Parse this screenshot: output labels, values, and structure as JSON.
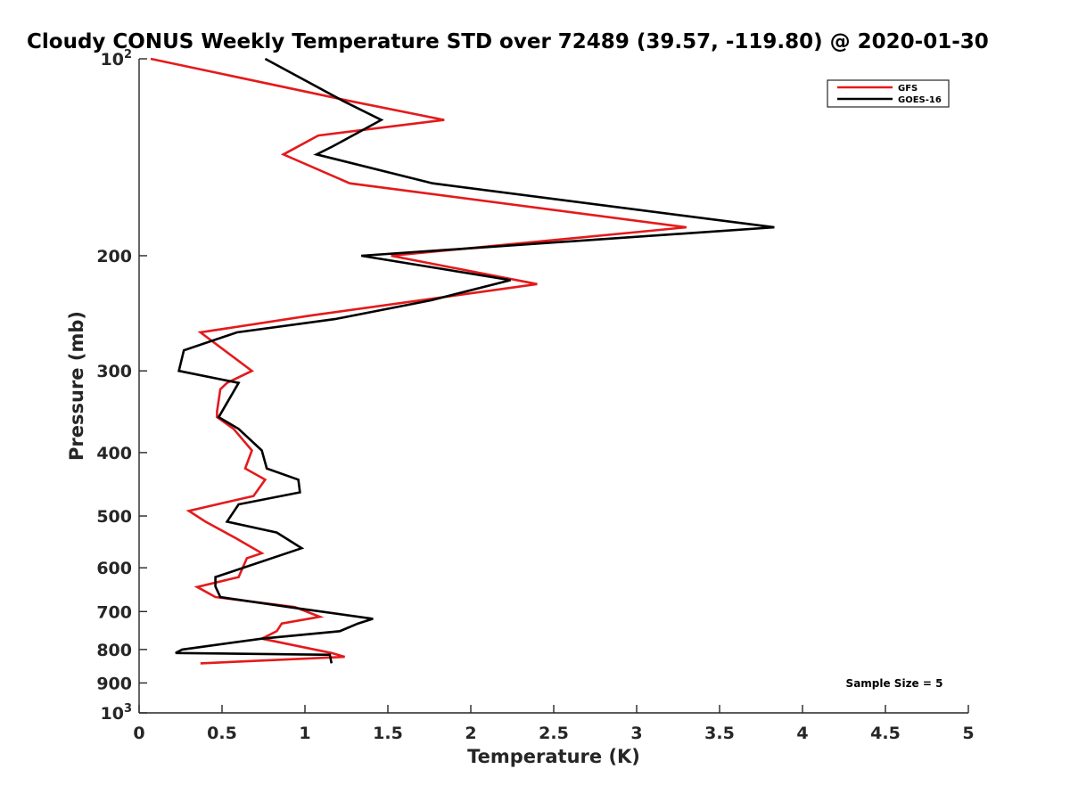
{
  "chart_data": {
    "type": "line",
    "title": "Cloudy CONUS Weekly Temperature STD over 72489 (39.57, -119.80) @ 2020-01-30",
    "xlabel": "Temperature (K)",
    "ylabel": "Pressure (mb)",
    "xlim": [
      0,
      5
    ],
    "ylim": [
      100,
      1000
    ],
    "y_scale": "log",
    "y_reversed": true,
    "x_ticks": [
      "0",
      "0.5",
      "1",
      "1.5",
      "2",
      "2.5",
      "3",
      "3.5",
      "4",
      "4.5",
      "5"
    ],
    "y_ticks": [
      {
        "value": 100,
        "base": "10",
        "exp": "2"
      },
      {
        "value": 200,
        "label": "200"
      },
      {
        "value": 300,
        "label": "300"
      },
      {
        "value": 400,
        "label": "400"
      },
      {
        "value": 500,
        "label": "500"
      },
      {
        "value": 600,
        "label": "600"
      },
      {
        "value": 700,
        "label": "700"
      },
      {
        "value": 800,
        "label": "800"
      },
      {
        "value": 900,
        "label": "900"
      },
      {
        "value": 1000,
        "base": "10",
        "exp": "3"
      }
    ],
    "grid": false,
    "legend_position": "top-right",
    "annotation": "Sample Size = 5",
    "series": [
      {
        "name": "GFS",
        "color": "#e41a1c",
        "points": [
          [
            0.07,
            100
          ],
          [
            1.27,
            116
          ],
          [
            1.84,
            124
          ],
          [
            1.08,
            131
          ],
          [
            0.87,
            140
          ],
          [
            1.27,
            155
          ],
          [
            3.3,
            181
          ],
          [
            1.52,
            200
          ],
          [
            2.4,
            221
          ],
          [
            1.03,
            247
          ],
          [
            0.37,
            262
          ],
          [
            0.68,
            300
          ],
          [
            0.53,
            313
          ],
          [
            0.49,
            320
          ],
          [
            0.47,
            346
          ],
          [
            0.47,
            353
          ],
          [
            0.57,
            368
          ],
          [
            0.68,
            397
          ],
          [
            0.64,
            423
          ],
          [
            0.76,
            440
          ],
          [
            0.69,
            466
          ],
          [
            0.3,
            491
          ],
          [
            0.4,
            510
          ],
          [
            0.58,
            540
          ],
          [
            0.74,
            570
          ],
          [
            0.65,
            580
          ],
          [
            0.6,
            620
          ],
          [
            0.35,
            642
          ],
          [
            0.46,
            665
          ],
          [
            0.94,
            689
          ],
          [
            1.09,
            713
          ],
          [
            0.86,
            730
          ],
          [
            0.83,
            750
          ],
          [
            0.74,
            770
          ],
          [
            1.16,
            810
          ],
          [
            1.24,
            821
          ],
          [
            0.37,
            840
          ]
        ]
      },
      {
        "name": "GOES-16",
        "color": "#000000",
        "points": [
          [
            0.76,
            100
          ],
          [
            1.23,
            116
          ],
          [
            1.46,
            124
          ],
          [
            1.17,
            136
          ],
          [
            1.07,
            140
          ],
          [
            1.77,
            155
          ],
          [
            3.83,
            181
          ],
          [
            1.34,
            200
          ],
          [
            2.24,
            218
          ],
          [
            1.76,
            234
          ],
          [
            1.18,
            250
          ],
          [
            0.59,
            262
          ],
          [
            0.27,
            279
          ],
          [
            0.24,
            300
          ],
          [
            0.6,
            313
          ],
          [
            0.48,
            353
          ],
          [
            0.6,
            368
          ],
          [
            0.74,
            397
          ],
          [
            0.77,
            423
          ],
          [
            0.96,
            440
          ],
          [
            0.97,
            460
          ],
          [
            0.6,
            480
          ],
          [
            0.53,
            510
          ],
          [
            0.83,
            530
          ],
          [
            0.98,
            560
          ],
          [
            0.46,
            620
          ],
          [
            0.46,
            641
          ],
          [
            0.49,
            665
          ],
          [
            0.92,
            690
          ],
          [
            1.41,
            718
          ],
          [
            1.32,
            730
          ],
          [
            1.21,
            750
          ],
          [
            0.74,
            770
          ],
          [
            0.26,
            800
          ],
          [
            0.22,
            810
          ],
          [
            1.15,
            815
          ],
          [
            1.16,
            840
          ]
        ]
      }
    ]
  }
}
